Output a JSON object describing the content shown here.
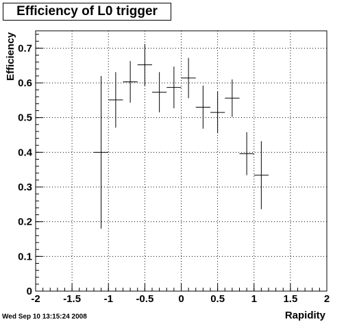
{
  "window": {
    "timestamp": "Wed Sep 10 13:15:24 2008"
  },
  "chart_data": {
    "type": "scatter",
    "title": "Efficiency of L0 trigger",
    "xlabel": "Rapidity",
    "ylabel": "Efficiency",
    "xlim": [
      -2,
      2
    ],
    "ylim": [
      0,
      0.75
    ],
    "grid": true,
    "x_ticks": [
      "-2",
      "-1.5",
      "-1",
      "-0.5",
      "0",
      "0.5",
      "1",
      "1.5",
      "2"
    ],
    "y_ticks": [
      "0",
      "0.1",
      "0.2",
      "0.3",
      "0.4",
      "0.5",
      "0.6",
      "0.7"
    ],
    "x_tick_values": [
      -2,
      -1.5,
      -1,
      -0.5,
      0,
      0.5,
      1,
      1.5,
      2
    ],
    "y_tick_values": [
      0,
      0.1,
      0.2,
      0.3,
      0.4,
      0.5,
      0.6,
      0.7
    ],
    "bin_width": 0.2,
    "points": [
      {
        "x": -1.1,
        "y": 0.4,
        "err": 0.22
      },
      {
        "x": -0.9,
        "y": 0.551,
        "err": 0.08
      },
      {
        "x": -0.7,
        "y": 0.603,
        "err": 0.06
      },
      {
        "x": -0.5,
        "y": 0.652,
        "err": 0.06
      },
      {
        "x": -0.3,
        "y": 0.573,
        "err": 0.058
      },
      {
        "x": -0.1,
        "y": 0.587,
        "err": 0.06
      },
      {
        "x": 0.1,
        "y": 0.614,
        "err": 0.058
      },
      {
        "x": 0.3,
        "y": 0.53,
        "err": 0.062
      },
      {
        "x": 0.5,
        "y": 0.515,
        "err": 0.06
      },
      {
        "x": 0.7,
        "y": 0.556,
        "err": 0.054
      },
      {
        "x": 0.9,
        "y": 0.396,
        "err": 0.062
      },
      {
        "x": 1.1,
        "y": 0.334,
        "err": 0.098
      }
    ]
  }
}
